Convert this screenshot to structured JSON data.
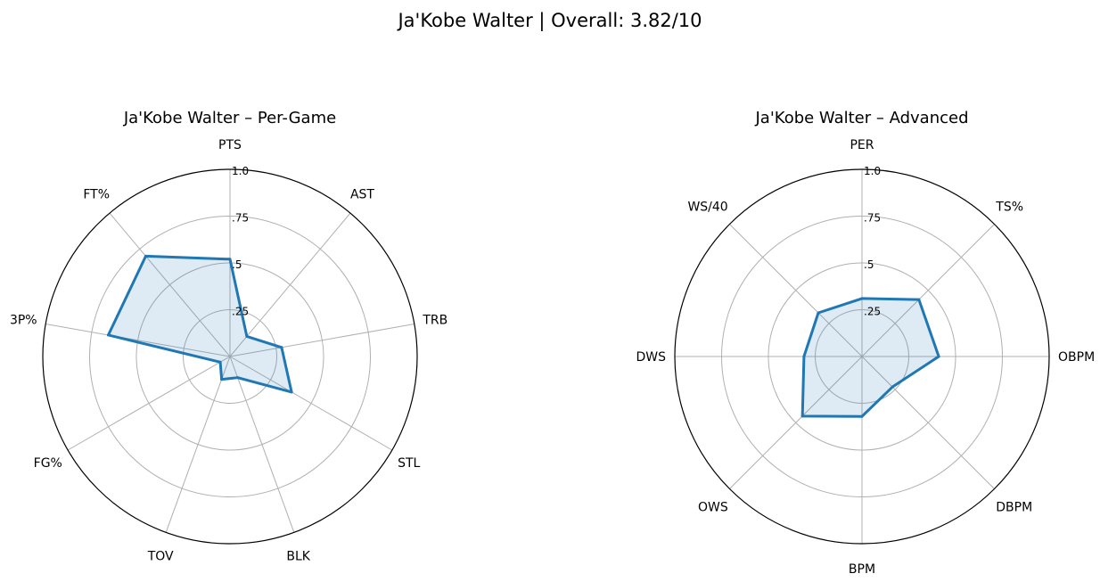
{
  "figure_title": "Ja'Kobe Walter | Overall: 3.82/10",
  "chart_data": [
    {
      "type": "radar",
      "title": "Ja'Kobe Walter – Per-Game",
      "categories": [
        "PTS",
        "AST",
        "TRB",
        "STL",
        "BLK",
        "TOV",
        "FG%",
        "3P%",
        "FT%"
      ],
      "values": [
        0.52,
        0.14,
        0.28,
        0.38,
        0.12,
        0.13,
        0.06,
        0.66,
        0.7
      ],
      "rticks": [
        ".25",
        ".5",
        ".75",
        "1.0"
      ],
      "rlim": [
        0,
        1.0
      ],
      "grid": true,
      "color": "#1f77b4",
      "fill_color": "#1f77b4"
    },
    {
      "type": "radar",
      "title": "Ja'Kobe Walter – Advanced",
      "categories": [
        "PER",
        "TS%",
        "OBPM",
        "DBPM",
        "BPM",
        "OWS",
        "DWS",
        "WS/40"
      ],
      "values": [
        0.31,
        0.43,
        0.41,
        0.23,
        0.32,
        0.45,
        0.31,
        0.33
      ],
      "rticks": [
        ".25",
        ".5",
        ".75",
        "1.0"
      ],
      "rlim": [
        0,
        1.0
      ],
      "grid": true,
      "color": "#1f77b4",
      "fill_color": "#1f77b4"
    }
  ]
}
